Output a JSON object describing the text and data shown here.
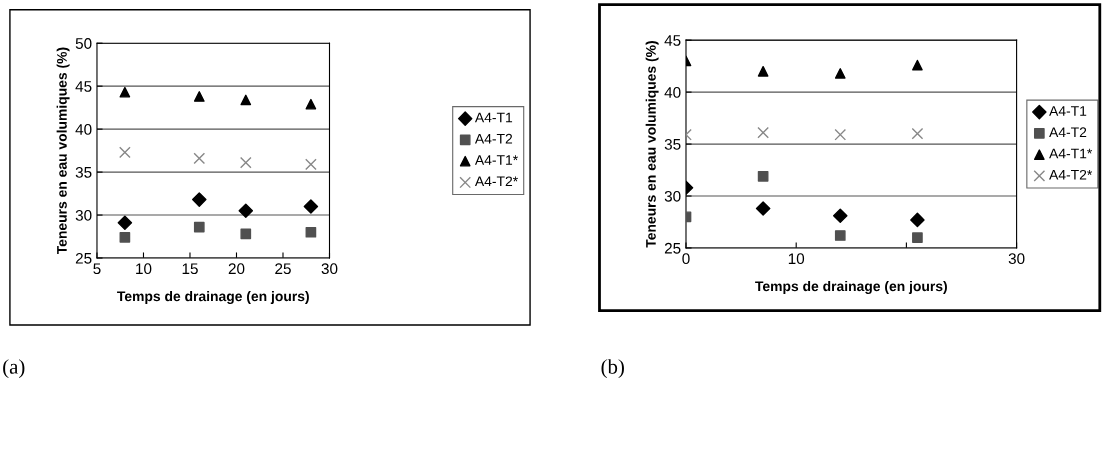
{
  "chart_data": [
    {
      "type": "scatter",
      "xlabel": "Temps de drainage (en jours)",
      "ylabel": "Teneurs en eau volumiques (%)",
      "x": [
        8,
        16,
        21,
        28
      ],
      "series": [
        {
          "name": "A4-T1",
          "color": "#000000",
          "marker": "diamond",
          "values": [
            29.1,
            31.8,
            30.5,
            31.0
          ]
        },
        {
          "name": "A4-T2",
          "color": "#505050",
          "marker": "square",
          "values": [
            27.4,
            28.6,
            27.8,
            28.0
          ]
        },
        {
          "name": "A4-T1*",
          "color": "#000000",
          "marker": "triangle",
          "values": [
            44.3,
            43.8,
            43.4,
            42.9
          ]
        },
        {
          "name": "A4-T2*",
          "color": "#888888",
          "marker": "cross",
          "values": [
            37.3,
            36.6,
            36.1,
            35.9
          ]
        }
      ],
      "xlim": [
        5,
        30
      ],
      "xticks": [
        5,
        10,
        15,
        20,
        25,
        30
      ],
      "ylim": [
        25,
        50
      ],
      "yticks": [
        25,
        30,
        35,
        40,
        45,
        50
      ],
      "grid": "y",
      "legend": "right",
      "annotations": [
        "(a)"
      ]
    },
    {
      "type": "scatter",
      "xlabel": "Temps de drainage (en jours)",
      "ylabel": "Teneurs en eau volumiques (%)",
      "x": [
        0,
        7,
        14,
        21
      ],
      "series": [
        {
          "name": "A4-T1",
          "color": "#000000",
          "marker": "diamond",
          "values": [
            30.8,
            28.8,
            28.1,
            27.7
          ]
        },
        {
          "name": "A4-T2",
          "color": "#505050",
          "marker": "square",
          "values": [
            28.0,
            31.9,
            26.2,
            26.0
          ]
        },
        {
          "name": "A4-T1*",
          "color": "#000000",
          "marker": "triangle",
          "values": [
            43.0,
            42.0,
            41.8,
            42.6
          ]
        },
        {
          "name": "A4-T2*",
          "color": "#888888",
          "marker": "cross",
          "values": [
            35.9,
            36.1,
            35.9,
            36.0
          ]
        }
      ],
      "xlim": [
        0,
        30
      ],
      "xticks": [
        0,
        10,
        {
          "value": 20,
          "label": null
        },
        30
      ],
      "ylim": [
        25,
        45
      ],
      "yticks": [
        25,
        30,
        35,
        40,
        45
      ],
      "grid": "y",
      "legend": "right",
      "annotations": [
        "(b)"
      ]
    }
  ]
}
